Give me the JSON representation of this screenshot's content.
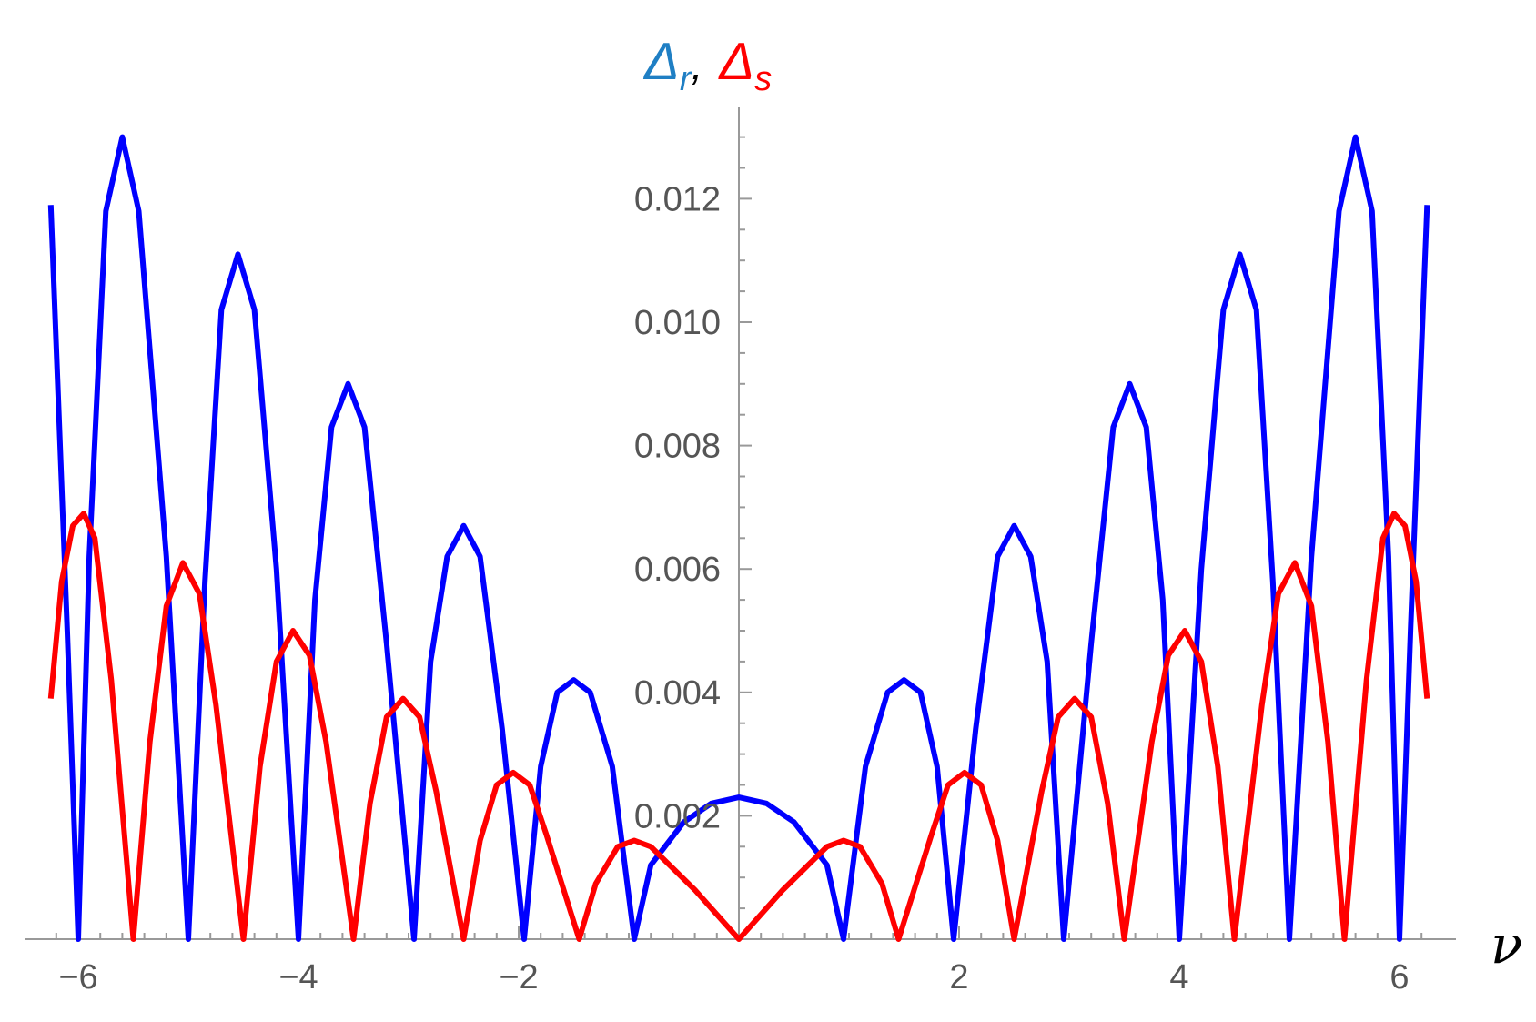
{
  "colors": {
    "delta_r": "#0000ff",
    "delta_s": "#ff0000",
    "title_r": "#1f7fc4",
    "axis": "#999999",
    "tick_text": "#555555"
  },
  "title": {
    "symbol": "Δ",
    "r_sub": "r",
    "separator": ",",
    "s_sub": "s"
  },
  "chart_data": {
    "type": "line",
    "xlabel": "ν",
    "ylabel": "Δr, Δs",
    "xlim": [
      -6.3,
      6.3
    ],
    "ylim": [
      0,
      0.0134
    ],
    "x_ticks": [
      -6,
      -4,
      -2,
      2,
      4,
      6
    ],
    "x_tick_labels": [
      "−6",
      "−4",
      "−2",
      "2",
      "4",
      "6"
    ],
    "y_ticks": [
      0.002,
      0.004,
      0.006,
      0.008,
      0.01,
      0.012
    ],
    "y_tick_labels": [
      "0.002",
      "0.004",
      "0.006",
      "0.008",
      "0.010",
      "0.012"
    ],
    "grid": false,
    "legend": "title",
    "series": [
      {
        "name": "Δr",
        "color": "#0000ff",
        "points": [
          [
            -6.25,
            0.0119
          ],
          [
            -6.1,
            0.005
          ],
          [
            -6.0,
            0.0
          ],
          [
            -5.9,
            0.0062
          ],
          [
            -5.75,
            0.0118
          ],
          [
            -5.6,
            0.013
          ],
          [
            -5.45,
            0.0118
          ],
          [
            -5.2,
            0.0062
          ],
          [
            -5.0,
            0.0
          ],
          [
            -4.85,
            0.0058
          ],
          [
            -4.7,
            0.0102
          ],
          [
            -4.55,
            0.0111
          ],
          [
            -4.4,
            0.0102
          ],
          [
            -4.2,
            0.006
          ],
          [
            -4.0,
            0.0
          ],
          [
            -3.85,
            0.0055
          ],
          [
            -3.7,
            0.0083
          ],
          [
            -3.55,
            0.009
          ],
          [
            -3.4,
            0.0083
          ],
          [
            -3.2,
            0.0048
          ],
          [
            -2.95,
            0.0
          ],
          [
            -2.8,
            0.0045
          ],
          [
            -2.65,
            0.0062
          ],
          [
            -2.5,
            0.0067
          ],
          [
            -2.35,
            0.0062
          ],
          [
            -2.15,
            0.0034
          ],
          [
            -1.95,
            0.0
          ],
          [
            -1.8,
            0.0028
          ],
          [
            -1.65,
            0.004
          ],
          [
            -1.5,
            0.0042
          ],
          [
            -1.35,
            0.004
          ],
          [
            -1.15,
            0.0028
          ],
          [
            -0.95,
            0.0
          ],
          [
            -0.8,
            0.0012
          ],
          [
            -0.5,
            0.0019
          ],
          [
            -0.25,
            0.0022
          ],
          [
            0.0,
            0.0023
          ],
          [
            0.25,
            0.0022
          ],
          [
            0.5,
            0.0019
          ],
          [
            0.8,
            0.0012
          ],
          [
            0.95,
            0.0
          ],
          [
            1.15,
            0.0028
          ],
          [
            1.35,
            0.004
          ],
          [
            1.5,
            0.0042
          ],
          [
            1.65,
            0.004
          ],
          [
            1.8,
            0.0028
          ],
          [
            1.95,
            0.0
          ],
          [
            2.15,
            0.0034
          ],
          [
            2.35,
            0.0062
          ],
          [
            2.5,
            0.0067
          ],
          [
            2.65,
            0.0062
          ],
          [
            2.8,
            0.0045
          ],
          [
            2.95,
            0.0
          ],
          [
            3.2,
            0.0048
          ],
          [
            3.4,
            0.0083
          ],
          [
            3.55,
            0.009
          ],
          [
            3.7,
            0.0083
          ],
          [
            3.85,
            0.0055
          ],
          [
            4.0,
            0.0
          ],
          [
            4.2,
            0.006
          ],
          [
            4.4,
            0.0102
          ],
          [
            4.55,
            0.0111
          ],
          [
            4.7,
            0.0102
          ],
          [
            4.85,
            0.0058
          ],
          [
            5.0,
            0.0
          ],
          [
            5.2,
            0.0062
          ],
          [
            5.45,
            0.0118
          ],
          [
            5.6,
            0.013
          ],
          [
            5.75,
            0.0118
          ],
          [
            5.9,
            0.0062
          ],
          [
            6.0,
            0.0
          ],
          [
            6.1,
            0.005
          ],
          [
            6.25,
            0.0119
          ]
        ]
      },
      {
        "name": "Δs",
        "color": "#ff0000",
        "points": [
          [
            -6.25,
            0.0039
          ],
          [
            -6.15,
            0.0058
          ],
          [
            -6.05,
            0.0067
          ],
          [
            -5.95,
            0.0069
          ],
          [
            -5.85,
            0.0065
          ],
          [
            -5.7,
            0.0042
          ],
          [
            -5.5,
            0.0
          ],
          [
            -5.35,
            0.0032
          ],
          [
            -5.2,
            0.0054
          ],
          [
            -5.05,
            0.0061
          ],
          [
            -4.9,
            0.0056
          ],
          [
            -4.75,
            0.0038
          ],
          [
            -4.5,
            0.0
          ],
          [
            -4.35,
            0.0028
          ],
          [
            -4.2,
            0.0045
          ],
          [
            -4.05,
            0.005
          ],
          [
            -3.9,
            0.0046
          ],
          [
            -3.75,
            0.0032
          ],
          [
            -3.5,
            0.0
          ],
          [
            -3.35,
            0.0022
          ],
          [
            -3.2,
            0.0036
          ],
          [
            -3.05,
            0.0039
          ],
          [
            -2.9,
            0.0036
          ],
          [
            -2.75,
            0.0024
          ],
          [
            -2.5,
            0.0
          ],
          [
            -2.35,
            0.0016
          ],
          [
            -2.2,
            0.0025
          ],
          [
            -2.05,
            0.0027
          ],
          [
            -1.9,
            0.0025
          ],
          [
            -1.75,
            0.0017
          ],
          [
            -1.45,
            0.0
          ],
          [
            -1.3,
            0.0009
          ],
          [
            -1.1,
            0.0015
          ],
          [
            -0.95,
            0.0016
          ],
          [
            -0.8,
            0.0015
          ],
          [
            -0.4,
            0.0008
          ],
          [
            0.0,
            0.0
          ],
          [
            0.4,
            0.0008
          ],
          [
            0.8,
            0.0015
          ],
          [
            0.95,
            0.0016
          ],
          [
            1.1,
            0.0015
          ],
          [
            1.3,
            0.0009
          ],
          [
            1.45,
            0.0
          ],
          [
            1.75,
            0.0017
          ],
          [
            1.9,
            0.0025
          ],
          [
            2.05,
            0.0027
          ],
          [
            2.2,
            0.0025
          ],
          [
            2.35,
            0.0016
          ],
          [
            2.5,
            0.0
          ],
          [
            2.75,
            0.0024
          ],
          [
            2.9,
            0.0036
          ],
          [
            3.05,
            0.0039
          ],
          [
            3.2,
            0.0036
          ],
          [
            3.35,
            0.0022
          ],
          [
            3.5,
            0.0
          ],
          [
            3.75,
            0.0032
          ],
          [
            3.9,
            0.0046
          ],
          [
            4.05,
            0.005
          ],
          [
            4.2,
            0.0045
          ],
          [
            4.35,
            0.0028
          ],
          [
            4.5,
            0.0
          ],
          [
            4.75,
            0.0038
          ],
          [
            4.9,
            0.0056
          ],
          [
            5.05,
            0.0061
          ],
          [
            5.2,
            0.0054
          ],
          [
            5.35,
            0.0032
          ],
          [
            5.5,
            0.0
          ],
          [
            5.7,
            0.0042
          ],
          [
            5.85,
            0.0065
          ],
          [
            5.95,
            0.0069
          ],
          [
            6.05,
            0.0067
          ],
          [
            6.15,
            0.0058
          ],
          [
            6.25,
            0.0039
          ]
        ]
      }
    ]
  }
}
